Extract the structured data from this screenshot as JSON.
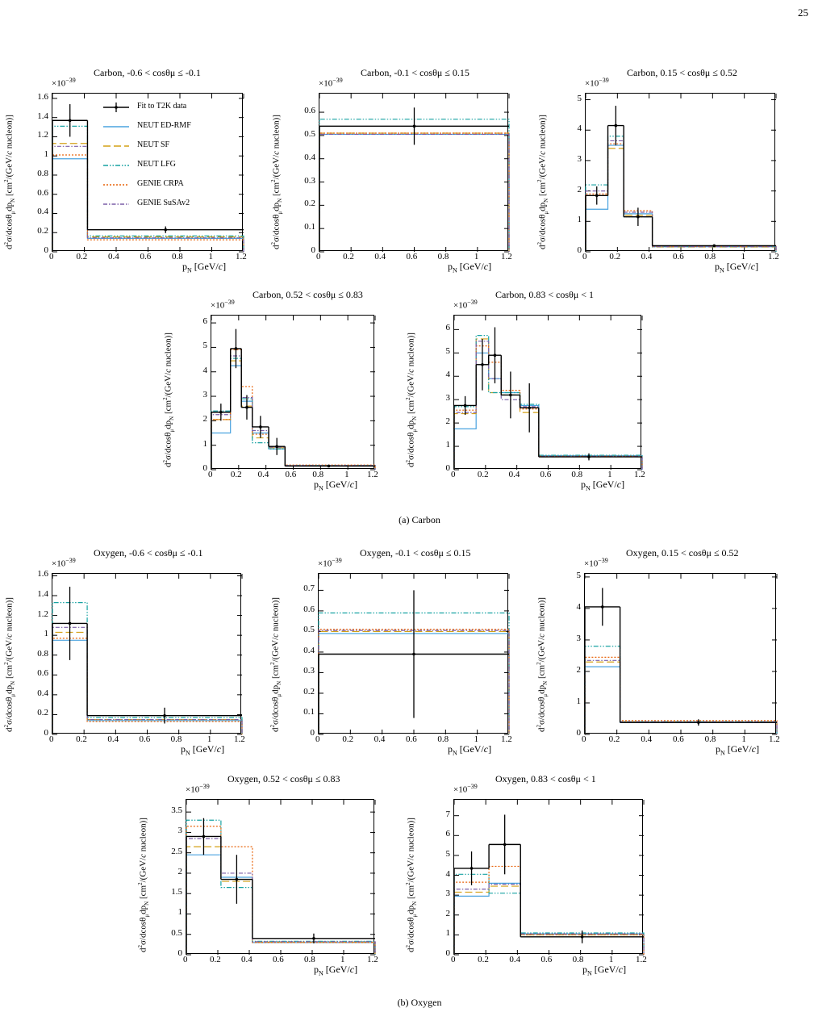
{
  "page_number": "25",
  "captions": {
    "carbon": "(a) Carbon",
    "oxygen": "(b) Oxygen"
  },
  "exponent": "×10",
  "exponent_power": "−39",
  "xlabel": "p_N [GeV/c]",
  "ylabel": "d²σ / (dcosθμ dpN) [cm² / (GeV/c nucleon)]",
  "colors": {
    "data": "#000000",
    "neut_edrmf": "#4aa3df",
    "neut_sf": "#d4a017",
    "neut_lfg": "#17a2a2",
    "genie_crpa": "#e8630a",
    "genie_susav2": "#7b5ea7"
  },
  "legend": [
    {
      "key": "data",
      "label": "Fit to T2K data"
    },
    {
      "key": "neut_edrmf",
      "label": "NEUT ED-RMF"
    },
    {
      "key": "neut_sf",
      "label": "NEUT SF"
    },
    {
      "key": "neut_lfg",
      "label": "NEUT LFG"
    },
    {
      "key": "genie_crpa",
      "label": "GENIE CRPA"
    },
    {
      "key": "genie_susav2",
      "label": "GENIE SuSAv2"
    }
  ],
  "chart_data": [
    {
      "type": "histogram",
      "title": "Carbon, -0.6 < cosθμ ≤ -0.1",
      "xlim": [
        0,
        1.2
      ],
      "ylim": [
        0,
        1.65
      ],
      "xticks": [
        0,
        0.2,
        0.4,
        0.6,
        0.8,
        1,
        1.2
      ],
      "yticks": [
        0,
        0.2,
        0.4,
        0.6,
        0.8,
        1,
        1.2,
        1.4,
        1.6
      ],
      "edges": [
        0,
        0.22,
        1.2
      ],
      "data": {
        "values": [
          1.37,
          0.23
        ],
        "errors": [
          0.17,
          0.035
        ],
        "x": [
          0.11,
          0.71
        ]
      },
      "series": {
        "neut_edrmf": [
          0.97,
          0.14
        ],
        "neut_sf": [
          1.13,
          0.155
        ],
        "neut_lfg": [
          1.31,
          0.165
        ],
        "genie_crpa": [
          1.01,
          0.125
        ],
        "genie_susav2": [
          1.1,
          0.145
        ]
      },
      "legend": true
    },
    {
      "type": "histogram",
      "title": "Carbon, -0.1 < cosθμ ≤ 0.15",
      "xlim": [
        0,
        1.2
      ],
      "ylim": [
        0,
        0.68
      ],
      "xticks": [
        0,
        0.2,
        0.4,
        0.6,
        0.8,
        1,
        1.2
      ],
      "yticks": [
        0,
        0.1,
        0.2,
        0.3,
        0.4,
        0.5,
        0.6
      ],
      "edges": [
        0,
        1.2
      ],
      "data": {
        "values": [
          0.54
        ],
        "errors": [
          0.08
        ],
        "x": [
          0.6
        ]
      },
      "series": {
        "neut_edrmf": [
          0.505
        ],
        "neut_sf": [
          0.51
        ],
        "neut_lfg": [
          0.57
        ],
        "genie_crpa": [
          0.51
        ],
        "genie_susav2": [
          0.505
        ]
      }
    },
    {
      "type": "histogram",
      "title": "Carbon, 0.15 < cosθμ ≤ 0.52",
      "xlim": [
        0,
        1.2
      ],
      "ylim": [
        0,
        5.2
      ],
      "xticks": [
        0,
        0.2,
        0.4,
        0.6,
        0.8,
        1,
        1.2
      ],
      "yticks": [
        0,
        1,
        2,
        3,
        4,
        5
      ],
      "edges": [
        0,
        0.14,
        0.24,
        0.42,
        1.2
      ],
      "data": {
        "values": [
          1.85,
          4.15,
          1.15,
          0.2
        ],
        "errors": [
          0.3,
          0.65,
          0.3,
          0.04
        ],
        "x": [
          0.07,
          0.19,
          0.33,
          0.81
        ]
      },
      "series": {
        "neut_edrmf": [
          1.4,
          3.5,
          1.25,
          0.17
        ],
        "neut_sf": [
          1.85,
          3.4,
          1.2,
          0.16
        ],
        "neut_lfg": [
          2.2,
          3.8,
          1.15,
          0.17
        ],
        "genie_crpa": [
          1.9,
          3.55,
          1.35,
          0.18
        ],
        "genie_susav2": [
          2.0,
          3.65,
          1.3,
          0.17
        ]
      }
    },
    {
      "type": "histogram",
      "title": "Carbon, 0.52 < cosθμ ≤ 0.83",
      "xlim": [
        0,
        1.2
      ],
      "ylim": [
        0,
        6.3
      ],
      "xticks": [
        0,
        0.2,
        0.4,
        0.6,
        0.8,
        1,
        1.2
      ],
      "yticks": [
        0,
        1,
        2,
        3,
        4,
        5,
        6
      ],
      "edges": [
        0,
        0.14,
        0.22,
        0.3,
        0.42,
        0.54,
        1.2
      ],
      "data": {
        "values": [
          2.35,
          4.95,
          2.55,
          1.75,
          0.95,
          0.15
        ],
        "errors": [
          0.35,
          0.8,
          0.5,
          0.45,
          0.35,
          0.04
        ],
        "x": [
          0.07,
          0.18,
          0.26,
          0.36,
          0.48,
          0.86
        ]
      },
      "series": {
        "neut_edrmf": [
          1.5,
          4.25,
          2.8,
          1.5,
          0.85,
          0.17
        ],
        "neut_sf": [
          2.05,
          4.45,
          2.6,
          1.3,
          0.9,
          0.16
        ],
        "neut_lfg": [
          2.4,
          4.55,
          2.9,
          1.1,
          0.85,
          0.18
        ],
        "genie_crpa": [
          2.05,
          4.9,
          3.4,
          1.45,
          0.95,
          0.19
        ],
        "genie_susav2": [
          2.25,
          4.65,
          2.95,
          1.6,
          0.92,
          0.17
        ]
      }
    },
    {
      "type": "histogram",
      "title": "Carbon, 0.83 < cosθμ < 1",
      "xlim": [
        0,
        1.2
      ],
      "ylim": [
        0,
        6.6
      ],
      "xticks": [
        0,
        0.2,
        0.4,
        0.6,
        0.8,
        1,
        1.2
      ],
      "yticks": [
        0,
        1,
        2,
        3,
        4,
        5,
        6
      ],
      "edges": [
        0,
        0.14,
        0.22,
        0.3,
        0.42,
        0.54,
        1.2
      ],
      "data": {
        "values": [
          2.75,
          4.5,
          4.9,
          3.2,
          2.65,
          0.55
        ],
        "errors": [
          0.4,
          1.1,
          1.2,
          1.0,
          1.05,
          0.15
        ],
        "x": [
          0.07,
          0.18,
          0.26,
          0.36,
          0.48,
          0.86
        ]
      },
      "series": {
        "neut_edrmf": [
          1.75,
          5.0,
          3.9,
          3.3,
          2.75,
          0.6
        ],
        "neut_sf": [
          2.4,
          5.6,
          3.3,
          3.2,
          2.45,
          0.55
        ],
        "neut_lfg": [
          2.7,
          5.75,
          3.3,
          3.3,
          2.8,
          0.62
        ],
        "genie_crpa": [
          2.55,
          5.3,
          4.6,
          3.4,
          2.6,
          0.58
        ],
        "genie_susav2": [
          2.45,
          5.5,
          3.9,
          3.0,
          2.7,
          0.57
        ]
      }
    },
    {
      "type": "histogram",
      "title": "Oxygen, -0.6 < cosθμ ≤ -0.1",
      "xlim": [
        0,
        1.2
      ],
      "ylim": [
        0,
        1.62
      ],
      "xticks": [
        0,
        0.2,
        0.4,
        0.6,
        0.8,
        1,
        1.2
      ],
      "yticks": [
        0,
        0.2,
        0.4,
        0.6,
        0.8,
        1,
        1.2,
        1.4,
        1.6
      ],
      "edges": [
        0,
        0.22,
        1.2
      ],
      "data": {
        "values": [
          1.12,
          0.19
        ],
        "errors": [
          0.37,
          0.08
        ],
        "x": [
          0.11,
          0.71
        ]
      },
      "series": {
        "neut_edrmf": [
          0.95,
          0.14
        ],
        "neut_sf": [
          1.03,
          0.15
        ],
        "neut_lfg": [
          1.33,
          0.17
        ],
        "genie_crpa": [
          0.97,
          0.13
        ],
        "genie_susav2": [
          1.08,
          0.15
        ]
      }
    },
    {
      "type": "histogram",
      "title": "Oxygen, -0.1 < cosθμ ≤ 0.15",
      "xlim": [
        0,
        1.2
      ],
      "ylim": [
        0,
        0.78
      ],
      "xticks": [
        0,
        0.2,
        0.4,
        0.6,
        0.8,
        1,
        1.2
      ],
      "yticks": [
        0,
        0.1,
        0.2,
        0.3,
        0.4,
        0.5,
        0.6,
        0.7
      ],
      "edges": [
        0,
        1.2
      ],
      "data": {
        "values": [
          0.39
        ],
        "errors": [
          0.31
        ],
        "x": [
          0.6
        ]
      },
      "series": {
        "neut_edrmf": [
          0.49
        ],
        "neut_sf": [
          0.5
        ],
        "neut_lfg": [
          0.59
        ],
        "genie_crpa": [
          0.51
        ],
        "genie_susav2": [
          0.505
        ]
      }
    },
    {
      "type": "histogram",
      "title": "Oxygen, 0.15 < cosθμ ≤ 0.52",
      "xlim": [
        0,
        1.2
      ],
      "ylim": [
        0,
        5.1
      ],
      "xticks": [
        0,
        0.2,
        0.4,
        0.6,
        0.8,
        1,
        1.2
      ],
      "yticks": [
        0,
        1,
        2,
        3,
        4,
        5
      ],
      "edges": [
        0,
        0.22,
        1.2
      ],
      "data": {
        "values": [
          4.05,
          0.38
        ],
        "errors": [
          0.6,
          0.1
        ],
        "x": [
          0.11,
          0.71
        ]
      },
      "series": {
        "neut_edrmf": [
          2.15,
          0.38
        ],
        "neut_sf": [
          2.3,
          0.4
        ],
        "neut_lfg": [
          2.8,
          0.4
        ],
        "genie_crpa": [
          2.45,
          0.44
        ],
        "genie_susav2": [
          2.35,
          0.4
        ]
      }
    },
    {
      "type": "histogram",
      "title": "Oxygen, 0.52 < cosθμ ≤ 0.83",
      "xlim": [
        0,
        1.2
      ],
      "ylim": [
        0,
        3.8
      ],
      "xticks": [
        0,
        0.2,
        0.4,
        0.6,
        0.8,
        1,
        1.2
      ],
      "yticks": [
        0,
        0.5,
        1,
        1.5,
        2,
        2.5,
        3,
        3.5
      ],
      "edges": [
        0,
        0.22,
        0.42,
        1.2
      ],
      "data": {
        "values": [
          2.9,
          1.85,
          0.4
        ],
        "errors": [
          0.45,
          0.6,
          0.12
        ],
        "x": [
          0.11,
          0.32,
          0.81
        ]
      },
      "series": {
        "neut_edrmf": [
          2.45,
          1.9,
          0.3
        ],
        "neut_sf": [
          2.65,
          1.8,
          0.31
        ],
        "neut_lfg": [
          3.3,
          1.65,
          0.33
        ],
        "genie_crpa": [
          3.15,
          2.65,
          0.3
        ],
        "genie_susav2": [
          2.85,
          2.0,
          0.32
        ]
      }
    },
    {
      "type": "histogram",
      "title": "Oxygen, 0.83 < cosθμ < 1",
      "xlim": [
        0,
        1.2
      ],
      "ylim": [
        0,
        7.8
      ],
      "xticks": [
        0,
        0.2,
        0.4,
        0.6,
        0.8,
        1,
        1.2
      ],
      "yticks": [
        0,
        1,
        2,
        3,
        4,
        5,
        6,
        7
      ],
      "edges": [
        0,
        0.22,
        0.42,
        1.2
      ],
      "data": {
        "values": [
          4.35,
          5.55,
          0.9
        ],
        "errors": [
          0.85,
          1.5,
          0.32
        ],
        "x": [
          0.11,
          0.32,
          0.81
        ]
      },
      "series": {
        "neut_edrmf": [
          2.95,
          3.6,
          1.05
        ],
        "neut_sf": [
          3.15,
          3.45,
          1.0
        ],
        "neut_lfg": [
          4.05,
          3.1,
          1.1
        ],
        "genie_crpa": [
          3.65,
          4.45,
          1.0
        ],
        "genie_susav2": [
          3.3,
          3.55,
          1.05
        ]
      }
    }
  ]
}
